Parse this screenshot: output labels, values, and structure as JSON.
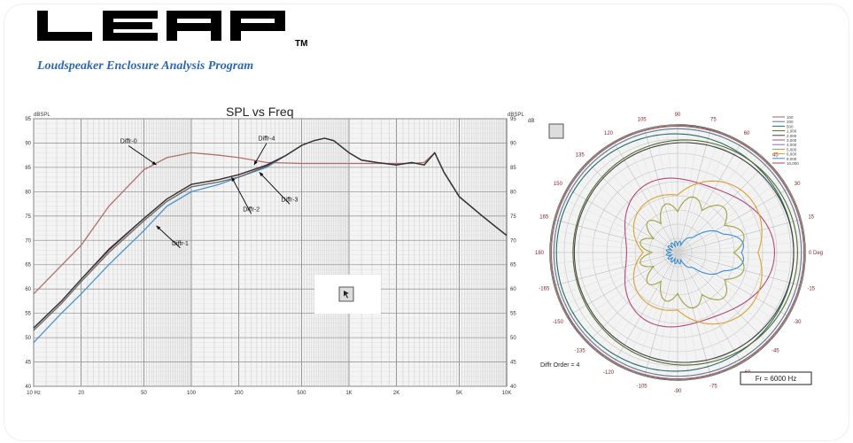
{
  "header": {
    "logo_text": "LEAP",
    "trademark": "TM",
    "subtitle": "Loudspeaker Enclosure Analysis Program"
  },
  "chart_data": [
    {
      "type": "line",
      "title": "SPL vs Freq",
      "ylabel": "dBSPL",
      "y2label": "dBSPL",
      "xscale": "log",
      "xlim": [
        10,
        10000
      ],
      "ylim": [
        40,
        95
      ],
      "y2lim": [
        40,
        95
      ],
      "x_tick_labels": [
        {
          "x": 10,
          "label": "10 Hz"
        },
        {
          "x": 20,
          "label": "20"
        },
        {
          "x": 50,
          "label": "50"
        },
        {
          "x": 100,
          "label": "100"
        },
        {
          "x": 200,
          "label": "200"
        },
        {
          "x": 500,
          "label": "500"
        },
        {
          "x": 1000,
          "label": "1K"
        },
        {
          "x": 2000,
          "label": "2K"
        },
        {
          "x": 5000,
          "label": "5K"
        },
        {
          "x": 10000,
          "label": "10K"
        }
      ],
      "y_ticks": [
        40,
        45,
        50,
        55,
        60,
        65,
        70,
        75,
        80,
        85,
        90,
        95
      ],
      "grid": true,
      "series": [
        {
          "name": "Diffr-0",
          "color": "#b0706a",
          "x": [
            10,
            20,
            30,
            50,
            70,
            100,
            150,
            200,
            300,
            500,
            700,
            1000,
            1500,
            2000,
            2500,
            3000,
            3500,
            4000,
            5000,
            7000,
            10000
          ],
          "y": [
            59,
            69,
            77,
            84.5,
            87,
            88,
            87.5,
            87,
            86,
            85.8,
            85.8,
            85.8,
            85.8,
            85.8,
            85.8,
            86,
            88,
            84,
            79,
            75,
            71
          ]
        },
        {
          "name": "Diffr-1",
          "color": "#4a95c8",
          "x": [
            10,
            15,
            20,
            30,
            50,
            70,
            100,
            150,
            200,
            300,
            400,
            500,
            600,
            700,
            800,
            1000,
            1200,
            1500,
            2000,
            2500,
            3000,
            3500,
            4000,
            5000,
            7000,
            10000
          ],
          "y": [
            49,
            55,
            59,
            65,
            72,
            77,
            80,
            81.5,
            83,
            85,
            87.5,
            89.5,
            90.5,
            91,
            90.5,
            88,
            86.5,
            86,
            85.5,
            86,
            85.5,
            88,
            84,
            79,
            75,
            71
          ]
        },
        {
          "name": "Diffr-2",
          "color": "#7a2434",
          "x": [
            10,
            15,
            20,
            30,
            50,
            70,
            100,
            150,
            200,
            300,
            400,
            500,
            600,
            700,
            800,
            1000,
            1200,
            1500,
            2000,
            2500,
            3000,
            3500,
            4000,
            5000,
            7000,
            10000
          ],
          "y": [
            52,
            57.5,
            62,
            68,
            74.5,
            78.5,
            81.5,
            82.5,
            83.5,
            85.5,
            87.5,
            89.5,
            90.5,
            91,
            90.5,
            88,
            86.5,
            86,
            85.5,
            86,
            85.5,
            88,
            84,
            79,
            75,
            71
          ]
        },
        {
          "name": "Diffr-3",
          "color": "#666666",
          "x": [
            10,
            15,
            20,
            30,
            50,
            70,
            100,
            150,
            200,
            300,
            400,
            500,
            600,
            700,
            800,
            1000,
            1200,
            1500,
            2000,
            2500,
            3000,
            3500,
            4000,
            5000,
            7000,
            10000
          ],
          "y": [
            51.5,
            57,
            61.5,
            67.5,
            74,
            78,
            81,
            82,
            83,
            85.2,
            87.5,
            89.5,
            90.5,
            91,
            90.5,
            88,
            86.5,
            86,
            85.5,
            86,
            85.5,
            88,
            84,
            79,
            75,
            71
          ]
        },
        {
          "name": "Diffr-4",
          "color": "#333333",
          "x": [
            10,
            15,
            20,
            30,
            50,
            70,
            100,
            150,
            200,
            300,
            400,
            500,
            600,
            700,
            800,
            1000,
            1200,
            1500,
            2000,
            2500,
            3000,
            3500,
            4000,
            5000,
            7000,
            10000
          ],
          "y": [
            52,
            57.5,
            62,
            68.2,
            74.5,
            78.5,
            81.5,
            82.5,
            83.5,
            85.4,
            87.5,
            89.5,
            90.5,
            91,
            90.5,
            88,
            86.5,
            86,
            85.5,
            86,
            85.5,
            88,
            84,
            79,
            75,
            71
          ]
        }
      ],
      "annotations": [
        {
          "text": "Diffr-0",
          "x": 40,
          "y": 90,
          "target": [
            60,
            85.5
          ]
        },
        {
          "text": "Diffr-4",
          "x": 300,
          "y": 90.5,
          "target": [
            250,
            85.5
          ]
        },
        {
          "text": "Diffr-3",
          "x": 420,
          "y": 78,
          "target": [
            270,
            84
          ]
        },
        {
          "text": "Diffr-2",
          "x": 240,
          "y": 76,
          "target": [
            180,
            83
          ]
        },
        {
          "text": "Diffr-1",
          "x": 85,
          "y": 69,
          "target": [
            60,
            73
          ]
        }
      ],
      "icon": "cursor-icon"
    },
    {
      "type": "polar",
      "r_unit": "dB",
      "angle_labels": [
        "0 Deg",
        "15",
        "30",
        "45",
        "60",
        "75",
        "90",
        "105",
        "120",
        "135",
        "150",
        "165",
        "180",
        "-165",
        "-150",
        "-135",
        "-120",
        "-105",
        "-90",
        "-75",
        "-60",
        "-45",
        "-30",
        "-15"
      ],
      "rings": [
        "-5",
        "-10",
        "-15",
        "-20",
        "-25",
        "-30",
        "-35",
        "-40"
      ],
      "annotations": [
        "Diffr Order = 4",
        "Fr = 6000 Hz"
      ],
      "legend": [
        "100",
        "200",
        "500",
        "1,000",
        "2,000",
        "3,000",
        "4,000",
        "5,000",
        "6,000",
        "8,000",
        "10,000"
      ],
      "series_colors": [
        "#a06060",
        "#607890",
        "#2a6a6a",
        "#556b2f",
        "#404040",
        "#b04a7a",
        "#8a6bbf",
        "#a0a040",
        "#d9a030",
        "#3b8fd0",
        "#c04040"
      ]
    }
  ]
}
